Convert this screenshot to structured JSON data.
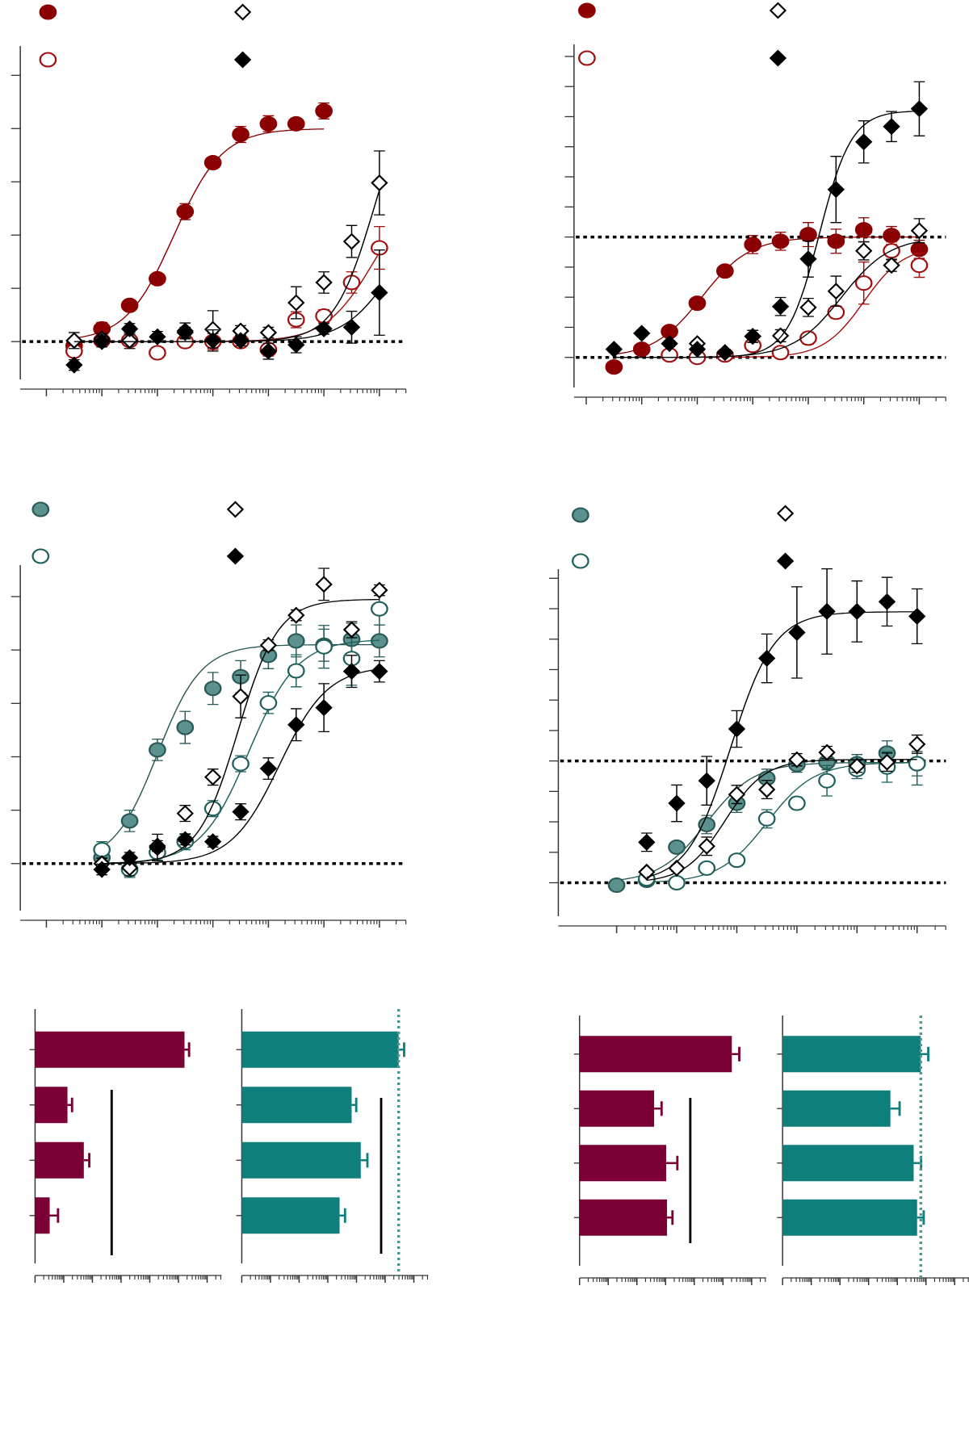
{
  "chart_data": [
    {
      "type": "scatter",
      "xlim": [
        -11.47,
        -4.52
      ],
      "xticks": [
        -11,
        -10,
        -9,
        -8,
        -7,
        -6,
        -5
      ],
      "ylim": [
        -0.71,
        5.55
      ],
      "yticks": [
        0,
        1,
        2,
        3,
        4,
        5
      ],
      "hlines": [
        0
      ],
      "legend": true,
      "series": [
        {
          "marker": "circle",
          "filled": true,
          "color": "#8b0000",
          "edgecolor": "#8b0000",
          "x": [
            -10.5,
            -10,
            -9.5,
            -9,
            -8.5,
            -8,
            -7.5,
            -7,
            -6.5,
            -6
          ],
          "values": [
            -0.08,
            0.24,
            0.68,
            1.18,
            2.44,
            3.36,
            3.89,
            4.09,
            4.09,
            4.33
          ],
          "errors": [
            0.1,
            0.12,
            0.08,
            0.08,
            0.15,
            0.1,
            0.15,
            0.15,
            0.1,
            0.15
          ],
          "fit": {
            "bottom": 0,
            "top": 4.0,
            "logec50": -8.7,
            "hill": 1
          }
        },
        {
          "marker": "circle",
          "filled": false,
          "color": "#ffffff",
          "edgecolor": "#a01010",
          "x": [
            -10.5,
            -10,
            -9.5,
            -9,
            -8.5,
            -8,
            -7.5,
            -7,
            -6.5,
            -6,
            -5.5,
            -5
          ],
          "values": [
            -0.18,
            0.02,
            0.02,
            -0.21,
            0,
            0,
            0,
            -0.15,
            0.41,
            0.48,
            1.11,
            1.76
          ],
          "errors": [
            0.1,
            0.1,
            0.1,
            0.1,
            0.1,
            0.15,
            0.1,
            0.12,
            0.15,
            0.12,
            0.2,
            0.4
          ],
          "fit": {
            "bottom": 0,
            "top": 3,
            "logec50": -5.1,
            "hill": 1
          }
        },
        {
          "marker": "diamond",
          "filled": false,
          "color": "#ffffff",
          "edgecolor": "#000000",
          "x": [
            -10.5,
            -10,
            -9.5,
            -8.5,
            -8,
            -7.5,
            -7,
            -6.5,
            -6,
            -5.5,
            -5
          ],
          "values": [
            0.02,
            0.05,
            0.02,
            0.2,
            0.23,
            0.2,
            0.17,
            0.73,
            1.11,
            1.88,
            2.98
          ],
          "errors": [
            0.15,
            0.1,
            0.15,
            0.15,
            0.35,
            0.1,
            0.1,
            0.3,
            0.2,
            0.3,
            0.6
          ],
          "fit": {
            "bottom": 0,
            "top": 5,
            "logec50": -5.1,
            "hill": 1.2
          }
        },
        {
          "marker": "diamond",
          "filled": true,
          "color": "#000000",
          "edgecolor": "#000000",
          "x": [
            -10.5,
            -10,
            -9.5,
            -9,
            -8.5,
            -8,
            -7.5,
            -7,
            -6.5,
            -6,
            -5.5,
            -5
          ],
          "values": [
            -0.44,
            0,
            0.24,
            0.09,
            0.17,
            0.02,
            0.02,
            -0.18,
            -0.06,
            0.24,
            0.27,
            0.92
          ],
          "errors": [
            0.1,
            0.1,
            0.1,
            0.1,
            0.1,
            0.2,
            0.1,
            0.15,
            0.15,
            0.1,
            0.3,
            0.8
          ],
          "fit": {
            "bottom": 0,
            "top": 2.5,
            "logec50": -4.8,
            "hill": 1
          }
        }
      ]
    },
    {
      "type": "scatter",
      "xlim": [
        -11.22,
        -4.52
      ],
      "xticks": [
        -11,
        -10,
        -9,
        -8,
        -7,
        -6,
        -5
      ],
      "ylim": [
        -1,
        10.4
      ],
      "yticks": [
        0,
        1,
        2,
        3,
        4,
        5,
        6,
        7,
        8,
        9,
        10
      ],
      "hlines": [
        0,
        4
      ],
      "legend": true,
      "series": [
        {
          "marker": "circle",
          "filled": true,
          "color": "#8b0000",
          "edgecolor": "#8b0000",
          "x": [
            -10.5,
            -10,
            -9.5,
            -9,
            -8.5,
            -8,
            -7.5,
            -7,
            -6.5,
            -6,
            -5.5,
            -5
          ],
          "values": [
            -0.32,
            0.27,
            0.86,
            1.8,
            2.87,
            3.75,
            3.86,
            4.08,
            3.86,
            4.24,
            4.05,
            3.59
          ],
          "errors": [
            0.1,
            0.15,
            0.15,
            0.15,
            0.15,
            0.3,
            0.3,
            0.4,
            0.4,
            0.4,
            0.3,
            0.3
          ],
          "fit": {
            "bottom": 0,
            "top": 4,
            "logec50": -8.92,
            "hill": 1
          }
        },
        {
          "marker": "circle",
          "filled": false,
          "color": "#ffffff",
          "edgecolor": "#a01010",
          "x": [
            -9.5,
            -9,
            -8.5,
            -8,
            -7.5,
            -7,
            -6.5,
            -6,
            -5.5,
            -5
          ],
          "values": [
            0.08,
            0,
            0.08,
            0.4,
            0.16,
            0.64,
            1.5,
            2.47,
            3.54,
            3.06
          ],
          "errors": [
            0.1,
            0.1,
            0.1,
            0.2,
            0.1,
            0.2,
            0.2,
            0.7,
            0.3,
            0.4
          ],
          "fit": {
            "bottom": 0,
            "top": 3.7,
            "logec50": -6,
            "hill": 1.2
          }
        },
        {
          "marker": "diamond",
          "filled": false,
          "color": "#ffffff",
          "edgecolor": "#000000",
          "x": [
            -9,
            -8.5,
            -8,
            -7.5,
            -7,
            -6.5,
            -6,
            -5.5,
            -5
          ],
          "values": [
            0.46,
            0.16,
            0.7,
            0.72,
            1.66,
            2.2,
            3.54,
            3.06,
            4.21
          ],
          "errors": [
            0.1,
            0.1,
            0.2,
            0.2,
            0.3,
            0.5,
            0.3,
            0.2,
            0.4
          ],
          "fit": {
            "bottom": 0,
            "top": 4,
            "logec50": -6.4,
            "hill": 1
          }
        },
        {
          "marker": "diamond",
          "filled": true,
          "color": "#000000",
          "edgecolor": "#000000",
          "x": [
            -10.5,
            -10,
            -9.5,
            -9,
            -8.5,
            -8,
            -7.5,
            -7,
            -6.5,
            -6,
            -5.5,
            -5
          ],
          "values": [
            0.27,
            0.8,
            0.46,
            0.27,
            0.16,
            0.7,
            1.69,
            3.27,
            5.58,
            7.16,
            7.67,
            8.26
          ],
          "errors": [
            0.1,
            0.1,
            0.1,
            0.1,
            0.1,
            0.2,
            0.3,
            0.6,
            1.1,
            0.7,
            0.5,
            0.9
          ],
          "fit": {
            "bottom": 0,
            "top": 8.2,
            "logec50": -6.8,
            "hill": 1.5
          }
        }
      ]
    },
    {
      "type": "scatter",
      "xlim": [
        -11.47,
        -4.52
      ],
      "xticks": [
        -11,
        -10,
        -9,
        -8,
        -7,
        -6,
        -5
      ],
      "ylim": [
        -0.88,
        5.59
      ],
      "yticks": [
        0,
        1,
        2,
        3,
        4,
        5
      ],
      "hlines": [
        0
      ],
      "legend": true,
      "series": [
        {
          "marker": "circle",
          "filled": true,
          "color": "#5b918e",
          "edgecolor": "#2a5856",
          "x": [
            -10,
            -9.5,
            -9,
            -8.5,
            -8,
            -7.5,
            -7,
            -6.5,
            -6,
            -5.5,
            -5
          ],
          "values": [
            0.11,
            0.8,
            2.13,
            2.55,
            3.28,
            3.5,
            3.9,
            4.17,
            4.09,
            4.2,
            4.17
          ],
          "errors": [
            0.15,
            0.2,
            0.2,
            0.3,
            0.3,
            0.3,
            0.25,
            0.3,
            0.3,
            0.3,
            0.3
          ],
          "fit": {
            "bottom": 0,
            "top": 4.1,
            "logec50": -9,
            "hill": 1.1
          }
        },
        {
          "marker": "circle",
          "filled": false,
          "color": "#ffffff",
          "edgecolor": "#1f5f5c",
          "x": [
            -10,
            -9.5,
            -9,
            -8.5,
            -8,
            -7.5,
            -7,
            -6.5,
            -6,
            -5.5,
            -5
          ],
          "values": [
            0.26,
            -0.11,
            0.21,
            0.41,
            1.03,
            1.87,
            3.01,
            3.61,
            4.06,
            3.84,
            4.77
          ],
          "errors": [
            0.15,
            0.15,
            0.15,
            0.15,
            0.15,
            0.15,
            0.2,
            0.3,
            0.4,
            0.5,
            0.3
          ],
          "fit": {
            "bottom": 0,
            "top": 4.2,
            "logec50": -7.35,
            "hill": 1
          }
        },
        {
          "marker": "diamond",
          "filled": false,
          "color": "#ffffff",
          "edgecolor": "#000000",
          "x": [
            -10,
            -9.5,
            -9,
            -8.5,
            -8,
            -7.5,
            -7,
            -6.5,
            -6,
            -5.5,
            -5
          ],
          "values": [
            0,
            -0.08,
            0.3,
            0.94,
            1.62,
            3.13,
            4.09,
            4.65,
            5.23,
            4.38,
            5.12
          ],
          "errors": [
            0.1,
            0.15,
            0.25,
            0.15,
            0.15,
            0.4,
            0.1,
            0.1,
            0.3,
            0.15,
            0.1
          ],
          "fit": {
            "bottom": 0,
            "top": 4.95,
            "logec50": -7.55,
            "hill": 1.2
          }
        },
        {
          "marker": "diamond",
          "filled": true,
          "color": "#000000",
          "edgecolor": "#000000",
          "x": [
            -10,
            -9.5,
            -9,
            -8.5,
            -8,
            -7.5,
            -7,
            -6.5,
            -6,
            -5.5,
            -5
          ],
          "values": [
            -0.11,
            0.11,
            0.33,
            0.45,
            0.41,
            0.97,
            1.78,
            2.6,
            2.92,
            3.6,
            3.6
          ],
          "errors": [
            0.1,
            0.1,
            0.1,
            0.1,
            0.1,
            0.15,
            0.2,
            0.3,
            0.45,
            0.3,
            0.2
          ],
          "fit": {
            "bottom": 0,
            "top": 3.7,
            "logec50": -6.8,
            "hill": 1
          }
        }
      ]
    },
    {
      "type": "scatter",
      "xlim": [
        -10.97,
        -4.52
      ],
      "xticks": [
        -10,
        -9,
        -8,
        -7,
        -6,
        -5
      ],
      "ylim": [
        -1.1,
        10.3
      ],
      "yticks": [
        0,
        1,
        2,
        3,
        4,
        5,
        6,
        7,
        8,
        9,
        10
      ],
      "hlines": [
        0,
        4
      ],
      "legend": true,
      "series": [
        {
          "marker": "circle",
          "filled": true,
          "color": "#5b918e",
          "edgecolor": "#2a5856",
          "x": [
            -10,
            -9.5,
            -9,
            -8.5,
            -8,
            -7.5,
            -7,
            -6.5,
            -6,
            -5.5,
            -5
          ],
          "values": [
            -0.08,
            0.08,
            1.17,
            1.91,
            2.61,
            3.43,
            3.88,
            3.96,
            3.91,
            4.26,
            3.91
          ],
          "errors": [
            0.1,
            0.1,
            0.15,
            0.3,
            0.3,
            0.3,
            0.25,
            0.25,
            0.3,
            0.4,
            0.4
          ],
          "fit": {
            "bottom": 0,
            "top": 3.95,
            "logec50": -8.5,
            "hill": 1.1
          }
        },
        {
          "marker": "circle",
          "filled": false,
          "color": "#ffffff",
          "edgecolor": "#1f5f5c",
          "x": [
            -9.5,
            -9,
            -8.5,
            -8,
            -7.5,
            -7,
            -6.5,
            -6,
            -5.5,
            -5
          ],
          "values": [
            0.13,
            0,
            0.48,
            0.74,
            2.1,
            2.61,
            3.35,
            3.72,
            3.8,
            3.91
          ],
          "errors": [
            0.1,
            0.1,
            0.15,
            0.15,
            0.3,
            0.2,
            0.5,
            0.3,
            0.5,
            0.7
          ],
          "fit": {
            "bottom": 0,
            "top": 3.95,
            "logec50": -7.5,
            "hill": 1.1
          }
        },
        {
          "marker": "diamond",
          "filled": false,
          "color": "#ffffff",
          "edgecolor": "#000000",
          "x": [
            -9.5,
            -9,
            -8.5,
            -8,
            -7.5,
            -7,
            -6.5,
            -6,
            -5.5,
            -5
          ],
          "values": [
            0.35,
            0.48,
            1.2,
            2.9,
            3.06,
            4.04,
            4.28,
            3.83,
            3.96,
            4.55
          ],
          "errors": [
            0.1,
            0.1,
            0.3,
            0.3,
            0.3,
            0.2,
            0.2,
            0.2,
            0.3,
            0.3
          ],
          "fit": {
            "bottom": 0,
            "top": 4.05,
            "logec50": -8.2,
            "hill": 1.3
          }
        },
        {
          "marker": "diamond",
          "filled": true,
          "color": "#000000",
          "edgecolor": "#000000",
          "x": [
            -9.5,
            -9,
            -8.5,
            -8,
            -7.5,
            -7,
            -6.5,
            -6,
            -5.5,
            -5
          ],
          "values": [
            1.33,
            2.61,
            3.35,
            5.05,
            7.37,
            8.22,
            8.91,
            8.91,
            9.23,
            8.75
          ],
          "errors": [
            0.3,
            0.6,
            0.8,
            0.6,
            0.8,
            1.5,
            1.4,
            1.0,
            0.8,
            0.9
          ],
          "fit": {
            "bottom": 0,
            "top": 8.9,
            "logec50": -8.1,
            "hill": 1.2
          }
        }
      ]
    },
    {
      "type": "barh",
      "categories": [
        null,
        null,
        null,
        null
      ],
      "values": [
        -5.79,
        -9.87,
        -9.3,
        -10.49
      ],
      "errors": [
        0.16,
        0.16,
        0.19,
        0.29
      ],
      "color": "#7a0035",
      "xlim": [
        -11,
        -4.5
      ],
      "xticks": [
        -11,
        -10,
        -9,
        -8,
        -7,
        -6,
        -5
      ]
    },
    {
      "type": "barh",
      "categories": [
        null,
        null,
        null,
        null
      ],
      "values": [
        -5.53,
        -7.17,
        -6.85,
        -7.59
      ],
      "errors": [
        0.19,
        0.16,
        0.23,
        0.19
      ],
      "color": "#0f7f7c",
      "xlim": [
        -11,
        -4.5
      ],
      "xticks": [
        -11,
        -10,
        -9,
        -8,
        -7,
        -6,
        -5
      ],
      "vline": -5.53
    },
    {
      "type": "barh",
      "categories": [
        null,
        null,
        null,
        null
      ],
      "values": [
        -5.69,
        -8.4,
        -7.98,
        -7.95
      ],
      "errors": [
        0.26,
        0.26,
        0.39,
        0.19
      ],
      "color": "#7a0035",
      "xlim": [
        -11,
        -4.5
      ],
      "xticks": [
        -11,
        -10,
        -9,
        -8,
        -7,
        -6,
        -5
      ]
    },
    {
      "type": "barh",
      "categories": [
        null,
        null,
        null,
        null
      ],
      "values": [
        -6.18,
        -7.24,
        -6.43,
        -6.31
      ],
      "errors": [
        0.26,
        0.32,
        0.26,
        0.23
      ],
      "color": "#0f7f7c",
      "xlim": [
        -11,
        -4.5
      ],
      "xticks": [
        -11,
        -10,
        -9,
        -8,
        -7,
        -6,
        -5
      ],
      "vline": -6.18
    }
  ]
}
